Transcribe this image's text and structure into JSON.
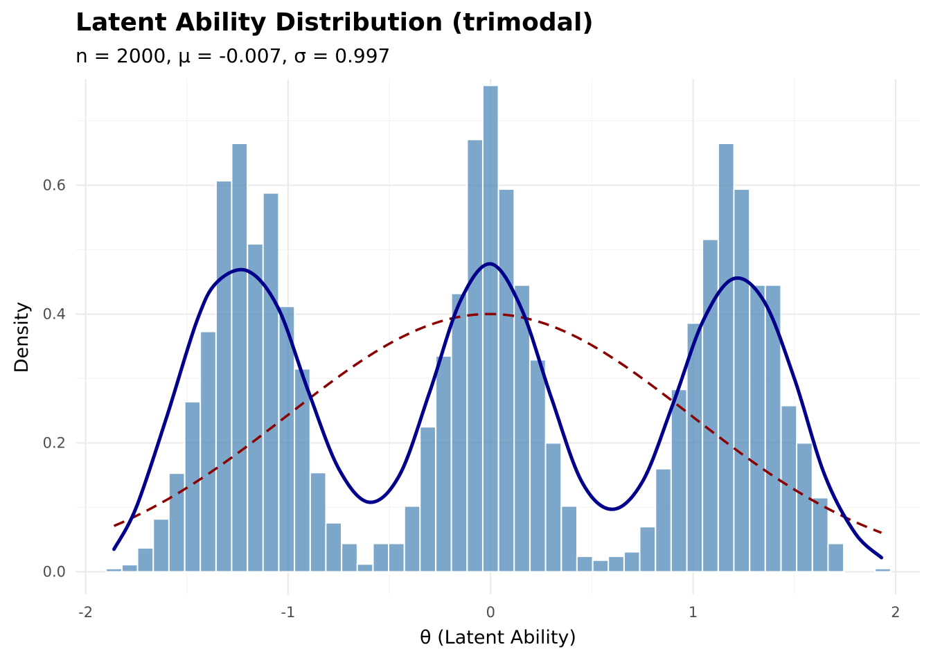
{
  "chart_data": {
    "type": "histogram",
    "title": "Latent Ability Distribution (trimodal)",
    "subtitle": "n = 2000, μ = -0.007, σ = 0.997",
    "xlabel": "θ (Latent Ability)",
    "ylabel": "Density",
    "xlim": [
      -2.05,
      2.12
    ],
    "ylim": [
      -0.035,
      0.765
    ],
    "x_ticks": [
      -2,
      -1,
      0,
      1,
      2
    ],
    "x_tick_labels": [
      "-2",
      "-1",
      "0",
      "1",
      "2"
    ],
    "y_ticks": [
      0.0,
      0.2,
      0.4,
      0.6
    ],
    "y_tick_labels": [
      "0.0",
      "0.2",
      "0.4",
      "0.6"
    ],
    "grid": true,
    "bin_width": 0.0775,
    "bins": [
      {
        "x": -1.86,
        "density": 0.005
      },
      {
        "x": -1.782,
        "density": 0.011
      },
      {
        "x": -1.705,
        "density": 0.037
      },
      {
        "x": -1.627,
        "density": 0.082
      },
      {
        "x": -1.55,
        "density": 0.153
      },
      {
        "x": -1.472,
        "density": 0.264
      },
      {
        "x": -1.395,
        "density": 0.373
      },
      {
        "x": -1.317,
        "density": 0.607
      },
      {
        "x": -1.24,
        "density": 0.665
      },
      {
        "x": -1.162,
        "density": 0.509
      },
      {
        "x": -1.085,
        "density": 0.588
      },
      {
        "x": -1.007,
        "density": 0.412
      },
      {
        "x": -0.93,
        "density": 0.315
      },
      {
        "x": -0.852,
        "density": 0.154
      },
      {
        "x": -0.775,
        "density": 0.076
      },
      {
        "x": -0.697,
        "density": 0.044
      },
      {
        "x": -0.62,
        "density": 0.012
      },
      {
        "x": -0.542,
        "density": 0.044
      },
      {
        "x": -0.465,
        "density": 0.044
      },
      {
        "x": -0.387,
        "density": 0.102
      },
      {
        "x": -0.31,
        "density": 0.225
      },
      {
        "x": -0.232,
        "density": 0.335
      },
      {
        "x": -0.155,
        "density": 0.432
      },
      {
        "x": -0.077,
        "density": 0.671
      },
      {
        "x": 0.0,
        "density": 0.755
      },
      {
        "x": 0.078,
        "density": 0.594
      },
      {
        "x": 0.155,
        "density": 0.445
      },
      {
        "x": 0.233,
        "density": 0.329
      },
      {
        "x": 0.31,
        "density": 0.2
      },
      {
        "x": 0.388,
        "density": 0.102
      },
      {
        "x": 0.465,
        "density": 0.024
      },
      {
        "x": 0.543,
        "density": 0.018
      },
      {
        "x": 0.62,
        "density": 0.024
      },
      {
        "x": 0.698,
        "density": 0.031
      },
      {
        "x": 0.775,
        "density": 0.07
      },
      {
        "x": 0.853,
        "density": 0.16
      },
      {
        "x": 0.93,
        "density": 0.283
      },
      {
        "x": 1.008,
        "density": 0.386
      },
      {
        "x": 1.085,
        "density": 0.516
      },
      {
        "x": 1.163,
        "density": 0.665
      },
      {
        "x": 1.24,
        "density": 0.594
      },
      {
        "x": 1.318,
        "density": 0.445
      },
      {
        "x": 1.395,
        "density": 0.445
      },
      {
        "x": 1.473,
        "density": 0.258
      },
      {
        "x": 1.55,
        "density": 0.2
      },
      {
        "x": 1.628,
        "density": 0.115
      },
      {
        "x": 1.705,
        "density": 0.044
      },
      {
        "x": 1.937,
        "density": 0.005
      }
    ],
    "density_curve": {
      "color": "#00008B",
      "points": [
        [
          -1.86,
          0.035
        ],
        [
          -1.75,
          0.1
        ],
        [
          -1.6,
          0.24
        ],
        [
          -1.45,
          0.39
        ],
        [
          -1.35,
          0.45
        ],
        [
          -1.2,
          0.467
        ],
        [
          -1.05,
          0.41
        ],
        [
          -0.9,
          0.28
        ],
        [
          -0.75,
          0.16
        ],
        [
          -0.6,
          0.108
        ],
        [
          -0.45,
          0.15
        ],
        [
          -0.3,
          0.28
        ],
        [
          -0.15,
          0.42
        ],
        [
          0.0,
          0.478
        ],
        [
          0.15,
          0.41
        ],
        [
          0.3,
          0.27
        ],
        [
          0.45,
          0.14
        ],
        [
          0.6,
          0.097
        ],
        [
          0.75,
          0.14
        ],
        [
          0.9,
          0.26
        ],
        [
          1.05,
          0.39
        ],
        [
          1.2,
          0.455
        ],
        [
          1.35,
          0.42
        ],
        [
          1.5,
          0.3
        ],
        [
          1.65,
          0.15
        ],
        [
          1.8,
          0.06
        ],
        [
          1.93,
          0.022
        ]
      ]
    },
    "normal_curve": {
      "color": "#8B0000",
      "mean": -0.007,
      "sd": 0.997,
      "x_range": [
        -1.86,
        1.93
      ]
    },
    "bar_color": "#4682B4"
  }
}
